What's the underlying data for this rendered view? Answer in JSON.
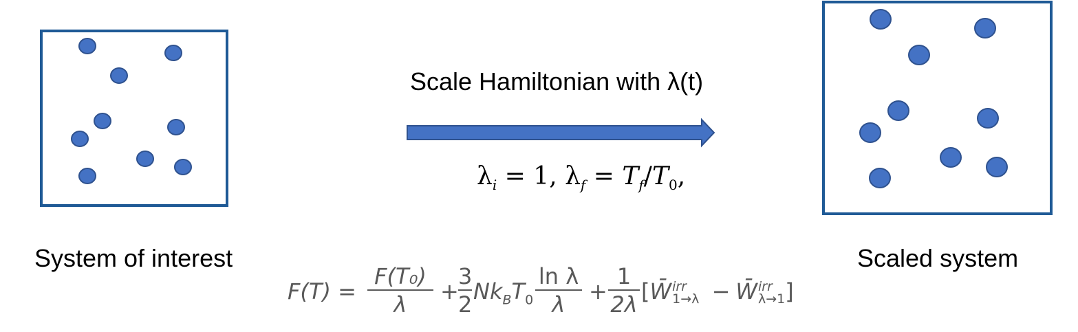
{
  "colors": {
    "box_border": "#1f5a96",
    "particle_fill": "#4472c4",
    "particle_stroke": "#2f528f",
    "arrow_fill": "#4472c4",
    "arrow_stroke": "#2f528f",
    "equation_text": "#595959"
  },
  "left_panel": {
    "caption": "System of interest"
  },
  "right_panel": {
    "caption": "Scaled system"
  },
  "arrow": {
    "label": "Scale Hamiltonian with λ(t)"
  },
  "lambda_condition": {
    "lam": "λ",
    "sub_i": "i",
    "eq1": " = 1, ",
    "sub_f": "f",
    "eq2": " = ",
    "T": "T",
    "slash": "/",
    "sub_zero": "0",
    "comma": ","
  },
  "free_energy_equation": {
    "lhs": "F(T) =",
    "frac1_num": "F(T₀)",
    "frac1_den": "λ",
    "plus1": "+",
    "frac2_num": "3",
    "frac2_den": "2",
    "mid_terms": "Nk",
    "sub_B": "B",
    "T0": "T",
    "sub_0": "0",
    "frac3_num": "ln λ",
    "frac3_den": "λ",
    "plus2": "+",
    "frac4_num": "1",
    "frac4_den": "2λ",
    "open_bracket": "[",
    "W1": "W̄",
    "W1_sup": "irr",
    "W1_sub": "1→λ",
    "minus": "−",
    "W2": "W̄",
    "W2_sup": "irr",
    "W2_sub": "λ→1",
    "close_bracket": "]"
  }
}
